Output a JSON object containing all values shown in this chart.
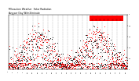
{
  "title": "Milwaukee Weather  Solar Radiation",
  "subtitle": "Avg per Day W/m2/minute",
  "background_color": "#ffffff",
  "plot_bg_color": "#ffffff",
  "grid_color": "#888888",
  "ylim": [
    0,
    1.0
  ],
  "xlim": [
    0,
    730
  ],
  "legend_color_current": "#ff0000",
  "legend_color_avg": "#000000",
  "dot_size": 0.4,
  "title_fontsize": 2.2,
  "tick_fontsize": 1.4,
  "spine_lw": 0.3,
  "grid_lw": 0.3,
  "month_vlines": [
    0,
    31,
    59,
    90,
    120,
    151,
    181,
    212,
    243,
    273,
    304,
    334,
    365,
    396,
    424,
    455,
    485,
    516,
    546,
    577,
    608,
    638,
    669,
    699
  ],
  "yticks": [
    0.0,
    0.2,
    0.4,
    0.6,
    0.8,
    1.0
  ],
  "ytick_labels": [
    "0",
    "0.2",
    "0.4",
    "0.6",
    "0.8",
    "1"
  ]
}
